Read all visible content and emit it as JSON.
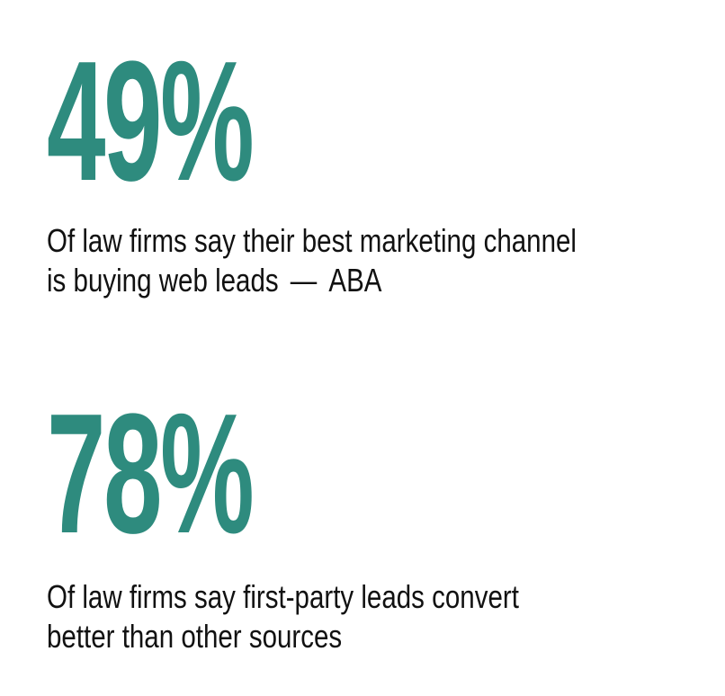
{
  "accent_color": "#2e8b7e",
  "stats": [
    {
      "value": "49%",
      "line1": "Of law firms say their best marketing channel",
      "line2": "is buying web leads",
      "separator": "—",
      "source": "ABA"
    },
    {
      "value": "78%",
      "line1": "Of law firms say first-party leads convert",
      "line2": "better than other sources"
    }
  ]
}
